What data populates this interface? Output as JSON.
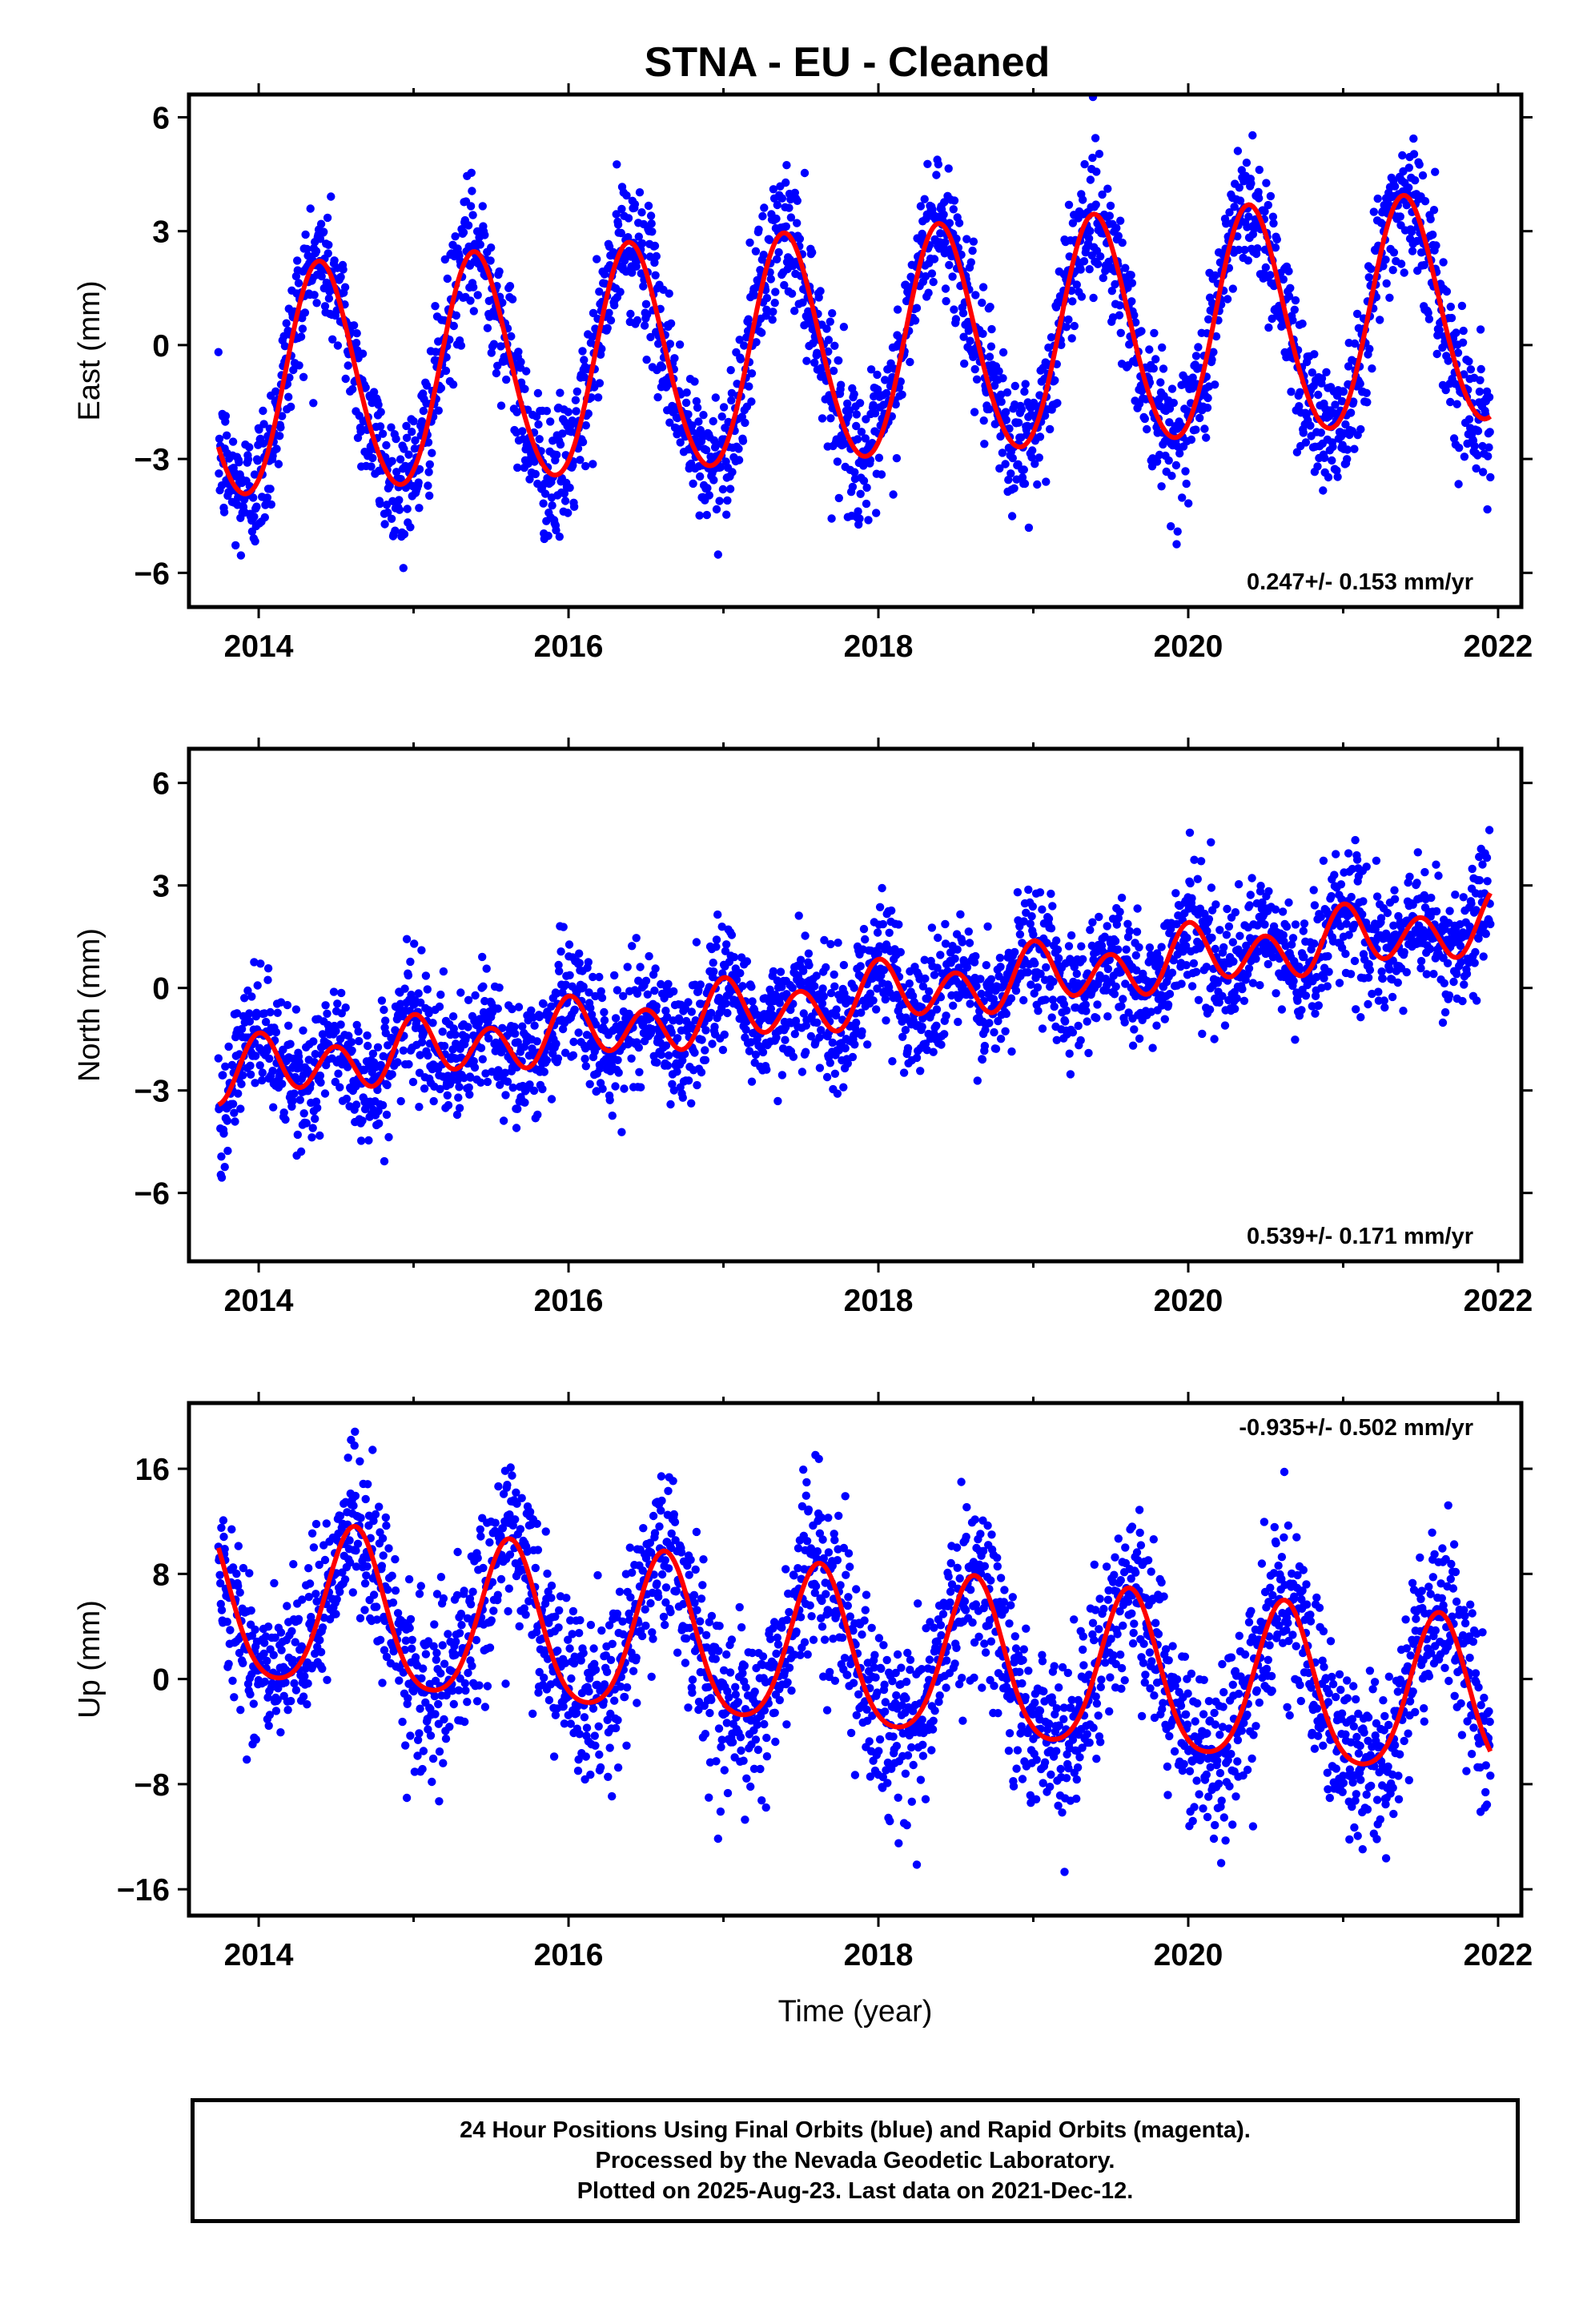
{
  "title": "STNA  - EU - Cleaned",
  "colors": {
    "points": "#0000ff",
    "fit": "#ff0000",
    "frame": "#000000"
  },
  "chart_data": [
    {
      "type": "scatter",
      "panel": "east",
      "ylabel": "East (mm)",
      "xlim": [
        2013.55,
        2022.15
      ],
      "ylim": [
        -6.9,
        6.6
      ],
      "xticks": [
        2014,
        2016,
        2018,
        2020,
        2022
      ],
      "xtick_labels": [
        "2014",
        "2016",
        "2018",
        "2020",
        "2022"
      ],
      "yticks": [
        -6,
        -3,
        0,
        3,
        6
      ],
      "ytick_labels": [
        "−6",
        "−3",
        "0",
        "3",
        "6"
      ],
      "rate_label": "0.247+/- 0.153 mm/yr",
      "rate_position": "bottom-right",
      "data_range": [
        2013.74,
        2021.95
      ],
      "model": {
        "offset": -1.05,
        "trend": 0.247,
        "annual_amp": 3.0,
        "annual_peak": 0.4,
        "semi_amp": 0.2,
        "semi_peak": 0.35,
        "scatter": 0.9
      },
      "series": [
        {
          "name": "Final Orbits",
          "color": "#0000ff",
          "kind": "points"
        },
        {
          "name": "Model",
          "color": "#ff0000",
          "kind": "line"
        }
      ]
    },
    {
      "type": "scatter",
      "panel": "north",
      "ylabel": "North (mm)",
      "xlim": [
        2013.55,
        2022.15
      ],
      "ylim": [
        -8.0,
        7.0
      ],
      "xticks": [
        2014,
        2016,
        2018,
        2020,
        2022
      ],
      "xtick_labels": [
        "2014",
        "2016",
        "2018",
        "2020",
        "2022"
      ],
      "yticks": [
        -6,
        -3,
        0,
        3,
        6
      ],
      "ytick_labels": [
        "−6",
        "−3",
        "0",
        "3",
        "6"
      ],
      "rate_label": "0.539+/- 0.171 mm/yr",
      "rate_position": "bottom-right",
      "data_range": [
        2013.74,
        2021.95
      ],
      "model": {
        "offset": -2.4,
        "trend": 0.539,
        "annual_amp": 0.35,
        "annual_peak": 0.05,
        "semi_amp": 0.75,
        "semi_peak": 0.0,
        "scatter": 0.9
      },
      "series": [
        {
          "name": "Final Orbits",
          "color": "#0000ff",
          "kind": "points"
        },
        {
          "name": "Model",
          "color": "#ff0000",
          "kind": "line"
        }
      ]
    },
    {
      "type": "scatter",
      "panel": "up",
      "ylabel": "Up (mm)",
      "xlim": [
        2013.55,
        2022.15
      ],
      "ylim": [
        -18.0,
        21.0
      ],
      "xticks": [
        2014,
        2016,
        2018,
        2020,
        2022
      ],
      "xtick_labels": [
        "2014",
        "2016",
        "2018",
        "2020",
        "2022"
      ],
      "yticks": [
        -16,
        -8,
        0,
        8,
        16
      ],
      "ytick_labels": [
        "−16",
        "−8",
        "0",
        "8",
        "16"
      ],
      "rate_label": "-0.935+/- 0.502 mm/yr",
      "rate_position": "top-right",
      "xlabel": "Time (year)",
      "data_range": [
        2013.74,
        2021.95
      ],
      "model": {
        "offset": 5.3,
        "trend": -0.935,
        "annual_amp": 6.0,
        "annual_peak": 0.62,
        "semi_amp": 0.9,
        "semi_peak": 0.12,
        "scatter": 3.2
      },
      "series": [
        {
          "name": "Final Orbits",
          "color": "#0000ff",
          "kind": "points"
        },
        {
          "name": "Model",
          "color": "#ff0000",
          "kind": "line"
        }
      ]
    }
  ],
  "footer": {
    "line1": "24 Hour Positions Using Final Orbits (blue) and Rapid Orbits (magenta).",
    "line2": "Processed by the Nevada Geodetic Laboratory.",
    "line3": "Plotted on 2025-Aug-23. Last data on 2021-Dec-12."
  }
}
